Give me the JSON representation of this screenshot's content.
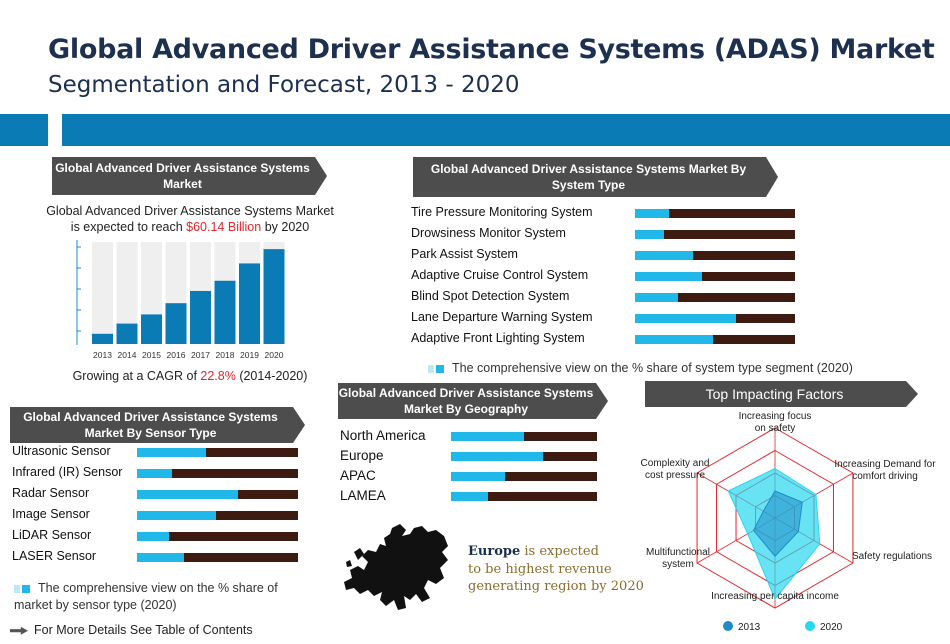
{
  "title": "Global Advanced Driver Assistance Systems (ADAS) Market",
  "subtitle": "Segmentation and Forecast, 2013 - 2020",
  "market": {
    "header": "Global Advanced Driver Assistance Systems Market",
    "desc_line1": "Global Advanced Driver Assistance Systems Market",
    "desc_line2_pre": "is expected to reach ",
    "desc_value": "$60.14 Billion",
    "desc_line2_post": " by 2020",
    "cagr_pre": "Growing at a CAGR of ",
    "cagr_value": "22.8%",
    "cagr_post": " (2014-2020)"
  },
  "system_type": {
    "header": "Global Advanced Driver Assistance Systems Market By System Type",
    "legend": "The comprehensive view on the % share of system type segment (2020)"
  },
  "sensor_type": {
    "header": "Global Advanced Driver Assistance Systems Market By Sensor Type",
    "legend": "The comprehensive view on the % share of market by sensor type (2020)"
  },
  "geography": {
    "header": "Global Advanced Driver Assistance Systems Market By Geography",
    "europe_word": "Europe",
    "europe_rest": " is expected",
    "europe_line2": "to be highest revenue",
    "europe_line3": "generating region by 2020"
  },
  "impacting": {
    "header": "Top Impacting Factors"
  },
  "footer": "For More Details See Table of Contents",
  "colors": {
    "accent": "#0a7bb5",
    "cyan": "#1fb8e8",
    "dark": "#3d1b10",
    "red": "#e0262c",
    "header_bg": "#4d4d4d"
  },
  "chart_data": [
    {
      "type": "bar",
      "categories": [
        "2013",
        "2014",
        "2015",
        "2016",
        "2017",
        "2018",
        "2019",
        "2020"
      ],
      "values": [
        0.1,
        0.2,
        0.29,
        0.4,
        0.52,
        0.62,
        0.79,
        0.93
      ],
      "ylim": [
        0,
        1
      ]
    },
    {
      "type": "bar",
      "orientation": "horizontal",
      "categories": [
        "Tire Pressure Monitoring System",
        "Drowsiness Monitor System",
        "Park Assist System",
        "Adaptive Cruise Control System",
        "Blind Spot Detection System",
        "Lane Departure Warning System",
        "Adaptive Front Lighting System"
      ],
      "values": [
        0.21,
        0.18,
        0.36,
        0.42,
        0.27,
        0.63,
        0.49
      ],
      "ylim": [
        0,
        1
      ]
    },
    {
      "type": "bar",
      "orientation": "horizontal",
      "categories": [
        "Ultrasonic Sensor",
        "Infrared (IR) Sensor",
        "Radar Sensor",
        "Image Sensor",
        "LiDAR Sensor",
        "LASER Sensor"
      ],
      "values": [
        0.43,
        0.22,
        0.63,
        0.49,
        0.2,
        0.29
      ],
      "ylim": [
        0,
        1
      ]
    },
    {
      "type": "bar",
      "orientation": "horizontal",
      "categories": [
        "North America",
        "Europe",
        "APAC",
        "LAMEA"
      ],
      "values": [
        0.5,
        0.63,
        0.37,
        0.25
      ],
      "ylim": [
        0,
        1
      ]
    },
    {
      "type": "radar",
      "axes": [
        "Increasing focus on safety",
        "Increasing Demand for comfort driving",
        "Safety regulations",
        "Increasing per capita income",
        "Multifunctional system",
        "Complexity and cost pressure"
      ],
      "series": [
        {
          "name": "2013",
          "values": [
            1.2,
            1.4,
            1.2,
            1.7,
            1.1,
            0.6
          ]
        },
        {
          "name": "2020",
          "values": [
            2.2,
            2.1,
            2.3,
            3.6,
            1.4,
            2.4
          ]
        }
      ],
      "ylim": [
        0,
        4
      ]
    }
  ]
}
